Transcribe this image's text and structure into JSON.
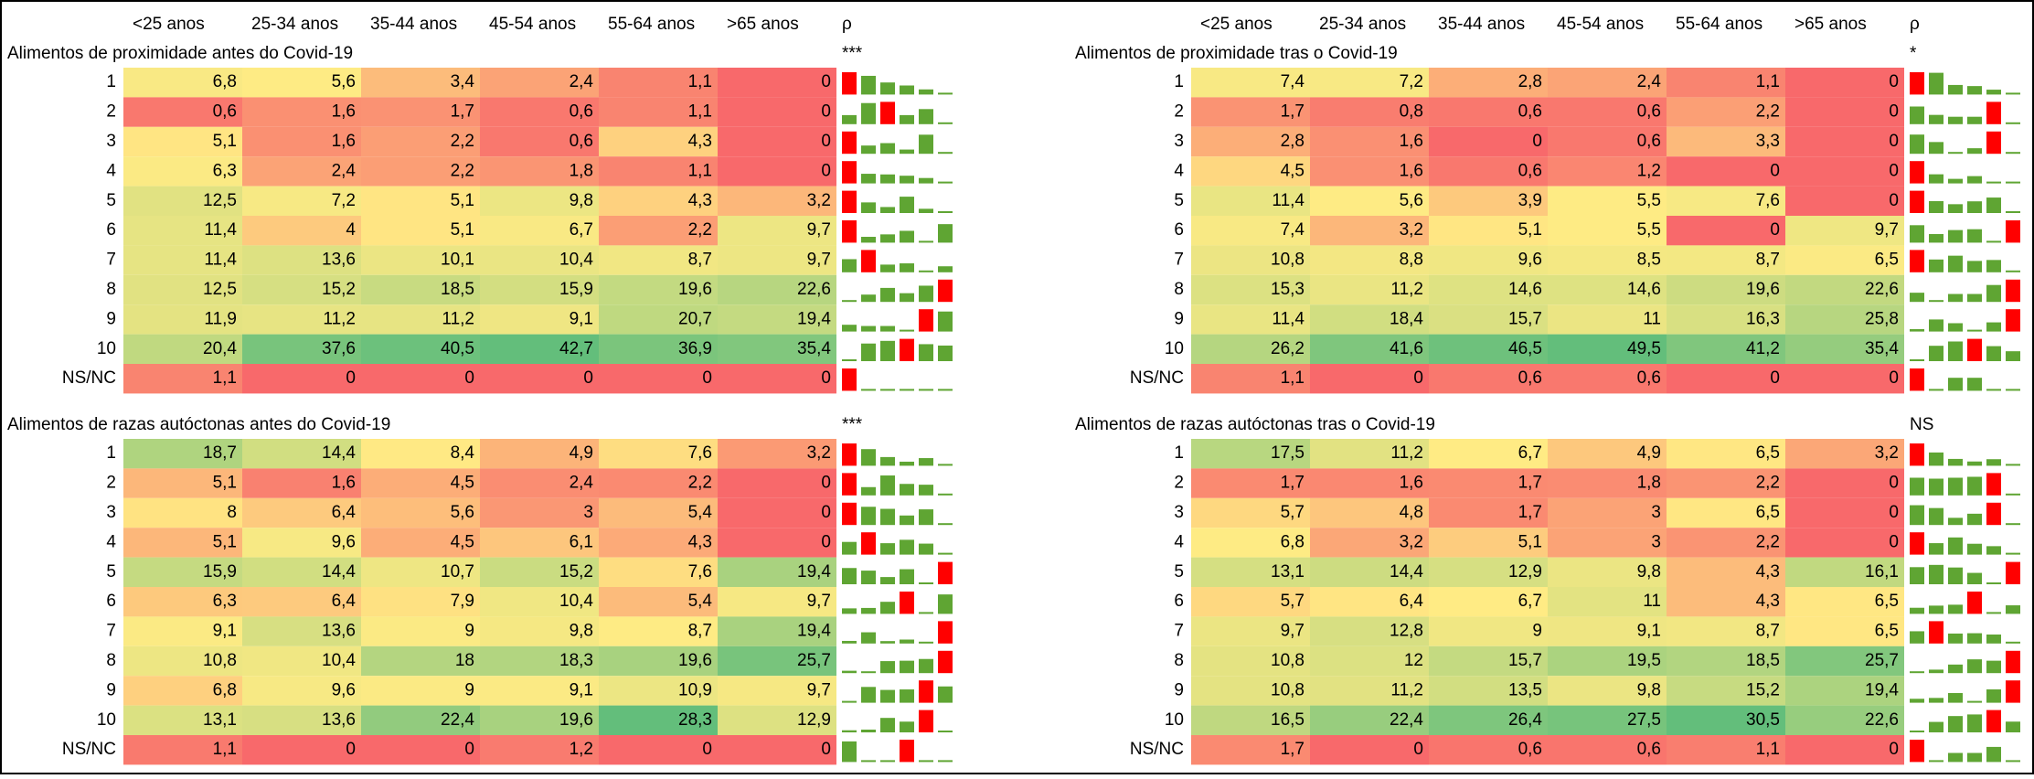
{
  "panels": [
    {
      "columns": [
        "<25 anos",
        "25-34 anos",
        "35-44 anos",
        "45-54 anos",
        "55-64 anos",
        ">65 anos",
        "ρ"
      ],
      "sections": [
        {
          "title": "Alimentos de proximidade antes do Covid-19",
          "significance": "***",
          "rows": [
            {
              "label": "1",
              "values": [
                "6,8",
                "5,6",
                "3,4",
                "2,4",
                "1,1",
                "0"
              ]
            },
            {
              "label": "2",
              "values": [
                "0,6",
                "1,6",
                "1,7",
                "0,6",
                "1,1",
                "0"
              ]
            },
            {
              "label": "3",
              "values": [
                "5,1",
                "1,6",
                "2,2",
                "0,6",
                "4,3",
                "0"
              ]
            },
            {
              "label": "4",
              "values": [
                "6,3",
                "2,4",
                "2,2",
                "1,8",
                "1,1",
                "0"
              ]
            },
            {
              "label": "5",
              "values": [
                "12,5",
                "7,2",
                "5,1",
                "9,8",
                "4,3",
                "3,2"
              ]
            },
            {
              "label": "6",
              "values": [
                "11,4",
                "4",
                "5,1",
                "6,7",
                "2,2",
                "9,7"
              ]
            },
            {
              "label": "7",
              "values": [
                "11,4",
                "13,6",
                "10,1",
                "10,4",
                "8,7",
                "9,7"
              ]
            },
            {
              "label": "8",
              "values": [
                "12,5",
                "15,2",
                "18,5",
                "15,9",
                "19,6",
                "22,6"
              ]
            },
            {
              "label": "9",
              "values": [
                "11,9",
                "11,2",
                "11,2",
                "9,1",
                "20,7",
                "19,4"
              ]
            },
            {
              "label": "10",
              "values": [
                "20,4",
                "37,6",
                "40,5",
                "42,7",
                "36,9",
                "35,4"
              ]
            },
            {
              "label": "NS/NC",
              "values": [
                "1,1",
                "0",
                "0",
                "0",
                "0",
                "0"
              ]
            }
          ]
        },
        {
          "title": "Alimentos de razas autóctonas antes do Covid-19",
          "significance": "***",
          "rows": [
            {
              "label": "1",
              "values": [
                "18,7",
                "14,4",
                "8,4",
                "4,9",
                "7,6",
                "3,2"
              ]
            },
            {
              "label": "2",
              "values": [
                "5,1",
                "1,6",
                "4,5",
                "2,4",
                "2,2",
                "0"
              ]
            },
            {
              "label": "3",
              "values": [
                "8",
                "6,4",
                "5,6",
                "3",
                "5,4",
                "0"
              ]
            },
            {
              "label": "4",
              "values": [
                "5,1",
                "9,6",
                "4,5",
                "6,1",
                "4,3",
                "0"
              ]
            },
            {
              "label": "5",
              "values": [
                "15,9",
                "14,4",
                "10,7",
                "15,2",
                "7,6",
                "19,4"
              ]
            },
            {
              "label": "6",
              "values": [
                "6,3",
                "6,4",
                "7,9",
                "10,4",
                "5,4",
                "9,7"
              ]
            },
            {
              "label": "7",
              "values": [
                "9,1",
                "13,6",
                "9",
                "9,8",
                "8,7",
                "19,4"
              ]
            },
            {
              "label": "8",
              "values": [
                "10,8",
                "10,4",
                "18",
                "18,3",
                "19,6",
                "25,7"
              ]
            },
            {
              "label": "9",
              "values": [
                "6,8",
                "9,6",
                "9",
                "9,1",
                "10,9",
                "9,7"
              ]
            },
            {
              "label": "10",
              "values": [
                "13,1",
                "13,6",
                "22,4",
                "19,6",
                "28,3",
                "12,9"
              ]
            },
            {
              "label": "NS/NC",
              "values": [
                "1,1",
                "0",
                "0",
                "1,2",
                "0",
                "0"
              ]
            }
          ]
        }
      ]
    },
    {
      "columns": [
        "<25 anos",
        "25-34 anos",
        "35-44 anos",
        "45-54 anos",
        "55-64 anos",
        ">65 anos",
        "ρ"
      ],
      "sections": [
        {
          "title": "Alimentos de proximidade tras o Covid-19",
          "significance": "*",
          "rows": [
            {
              "label": "1",
              "values": [
                "7,4",
                "7,2",
                "2,8",
                "2,4",
                "1,1",
                "0"
              ]
            },
            {
              "label": "2",
              "values": [
                "1,7",
                "0,8",
                "0,6",
                "0,6",
                "2,2",
                "0"
              ]
            },
            {
              "label": "3",
              "values": [
                "2,8",
                "1,6",
                "0",
                "0,6",
                "3,3",
                "0"
              ]
            },
            {
              "label": "4",
              "values": [
                "4,5",
                "1,6",
                "0,6",
                "1,2",
                "0",
                "0"
              ]
            },
            {
              "label": "5",
              "values": [
                "11,4",
                "5,6",
                "3,9",
                "5,5",
                "7,6",
                "0"
              ]
            },
            {
              "label": "6",
              "values": [
                "7,4",
                "3,2",
                "5,1",
                "5,5",
                "0",
                "9,7"
              ]
            },
            {
              "label": "7",
              "values": [
                "10,8",
                "8,8",
                "9,6",
                "8,5",
                "8,7",
                "6,5"
              ]
            },
            {
              "label": "8",
              "values": [
                "15,3",
                "11,2",
                "14,6",
                "14,6",
                "19,6",
                "22,6"
              ]
            },
            {
              "label": "9",
              "values": [
                "11,4",
                "18,4",
                "15,7",
                "11",
                "16,3",
                "25,8"
              ]
            },
            {
              "label": "10",
              "values": [
                "26,2",
                "41,6",
                "46,5",
                "49,5",
                "41,2",
                "35,4"
              ]
            },
            {
              "label": "NS/NC",
              "values": [
                "1,1",
                "0",
                "0,6",
                "0,6",
                "0",
                "0"
              ]
            }
          ]
        },
        {
          "title": "Alimentos de razas autóctonas tras o Covid-19",
          "significance": "NS",
          "rows": [
            {
              "label": "1",
              "values": [
                "17,5",
                "11,2",
                "6,7",
                "4,9",
                "6,5",
                "3,2"
              ]
            },
            {
              "label": "2",
              "values": [
                "1,7",
                "1,6",
                "1,7",
                "1,8",
                "2,2",
                "0"
              ]
            },
            {
              "label": "3",
              "values": [
                "5,7",
                "4,8",
                "1,7",
                "3",
                "6,5",
                "0"
              ]
            },
            {
              "label": "4",
              "values": [
                "6,8",
                "3,2",
                "5,1",
                "3",
                "2,2",
                "0"
              ]
            },
            {
              "label": "5",
              "values": [
                "13,1",
                "14,4",
                "12,9",
                "9,8",
                "4,3",
                "16,1"
              ]
            },
            {
              "label": "6",
              "values": [
                "5,7",
                "6,4",
                "6,7",
                "11",
                "4,3",
                "6,5"
              ]
            },
            {
              "label": "7",
              "values": [
                "9,7",
                "12,8",
                "9",
                "9,1",
                "8,7",
                "6,5"
              ]
            },
            {
              "label": "8",
              "values": [
                "10,8",
                "12",
                "15,7",
                "19,5",
                "18,5",
                "25,7"
              ]
            },
            {
              "label": "9",
              "values": [
                "10,8",
                "11,2",
                "13,5",
                "9,8",
                "15,2",
                "19,4"
              ]
            },
            {
              "label": "10",
              "values": [
                "16,5",
                "22,4",
                "26,4",
                "27,5",
                "30,5",
                "22,6"
              ]
            },
            {
              "label": "NS/NC",
              "values": [
                "1,7",
                "0",
                "0,6",
                "0,6",
                "1,1",
                "0"
              ]
            }
          ]
        }
      ]
    }
  ]
}
